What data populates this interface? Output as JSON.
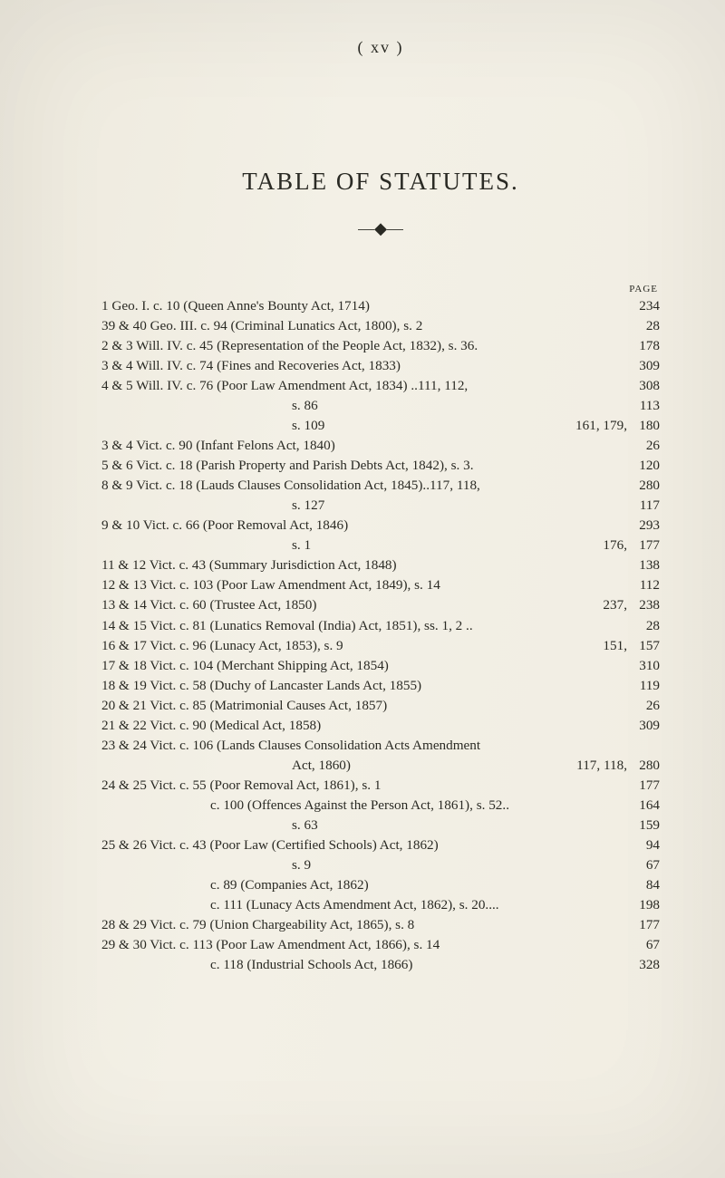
{
  "header_num": "(  xv  )",
  "title": "TABLE OF STATUTES.",
  "ornament": "—◆—",
  "page_label": "PAGE",
  "rows": [
    {
      "lead": "1 Geo. I. c. 10 (Queen Anne's Bounty Act, 1714)",
      "pg": "234",
      "cls": ""
    },
    {
      "lead": "39 & 40 Geo. III. c. 94 (Criminal Lunatics Act, 1800), s. 2",
      "pg": "28",
      "cls": ""
    },
    {
      "lead": "2 & 3 Will. IV. c. 45 (Representation of the People Act, 1832), s. 36.",
      "pg": "178",
      "cls": ""
    },
    {
      "lead": "3 & 4 Will. IV. c. 74 (Fines and Recoveries Act, 1833)",
      "pg": "309",
      "cls": ""
    },
    {
      "lead": "4 & 5 Will. IV. c. 76 (Poor Law Amendment Act, 1834) ..111, 112,",
      "pg": "308",
      "cls": "",
      "nodots": true
    },
    {
      "lead": "s. 86",
      "pg": "113",
      "cls": "cont"
    },
    {
      "lead": "s. 109",
      "mid": "161, 179,",
      "pg": "180",
      "cls": "cont"
    },
    {
      "lead": "3 & 4 Vict. c. 90 (Infant Felons Act, 1840)",
      "pg": "26",
      "cls": ""
    },
    {
      "lead": "5 & 6 Vict. c. 18 (Parish Property and Parish Debts Act, 1842), s. 3.",
      "pg": "120",
      "cls": ""
    },
    {
      "lead": "8 & 9 Vict. c. 18 (Lauds Clauses Consolidation Act, 1845)..117, 118,",
      "pg": "280",
      "cls": "",
      "nodots": true
    },
    {
      "lead": "s. 127",
      "pg": "117",
      "cls": "cont"
    },
    {
      "lead": "9 & 10 Vict. c. 66 (Poor Removal Act, 1846)",
      "pg": "293",
      "cls": ""
    },
    {
      "lead": "s. 1",
      "mid": "176,",
      "pg": "177",
      "cls": "cont"
    },
    {
      "lead": "11 & 12 Vict. c. 43 (Summary Jurisdiction Act, 1848)",
      "pg": "138",
      "cls": ""
    },
    {
      "lead": "12 & 13 Vict. c. 103 (Poor Law Amendment Act, 1849), s. 14",
      "pg": "112",
      "cls": ""
    },
    {
      "lead": "13 & 14 Vict. c. 60 (Trustee Act, 1850)",
      "mid": "237,",
      "pg": "238",
      "cls": ""
    },
    {
      "lead": "14 & 15 Vict. c. 81 (Lunatics Removal (India) Act, 1851), ss. 1, 2 ..",
      "pg": "28",
      "cls": "",
      "nodots": true
    },
    {
      "lead": "16 & 17 Vict. c. 96 (Lunacy Act, 1853), s. 9",
      "mid": "151,",
      "pg": "157",
      "cls": ""
    },
    {
      "lead": "17 & 18 Vict. c. 104 (Merchant Shipping Act, 1854)",
      "pg": "310",
      "cls": ""
    },
    {
      "lead": "18 & 19 Vict. c. 58 (Duchy of Lancaster Lands Act, 1855)",
      "pg": "119",
      "cls": ""
    },
    {
      "lead": "20 & 21 Vict. c. 85 (Matrimonial Causes Act, 1857)",
      "pg": "26",
      "cls": ""
    },
    {
      "lead": "21 & 22 Vict. c. 90 (Medical Act, 1858)",
      "pg": "309",
      "cls": ""
    },
    {
      "lead": "23 & 24 Vict. c. 106 (Lands Clauses Consolidation Acts Amendment",
      "pg": "",
      "cls": "",
      "nodots": true
    },
    {
      "lead": "Act, 1860)",
      "mid": "117, 118,",
      "pg": "280",
      "cls": "cont"
    },
    {
      "lead": "24 & 25 Vict. c. 55 (Poor Removal Act, 1861), s. 1",
      "pg": "177",
      "cls": ""
    },
    {
      "lead": "c. 100 (Offences Against the Person Act, 1861), s. 52..",
      "pg": "164",
      "cls": "cont3",
      "nodots": true
    },
    {
      "lead": "s. 63",
      "pg": "159",
      "cls": "cont"
    },
    {
      "lead": "25 & 26 Vict. c. 43 (Poor Law (Certified Schools) Act, 1862)",
      "pg": "94",
      "cls": ""
    },
    {
      "lead": "s. 9",
      "pg": "67",
      "cls": "cont"
    },
    {
      "lead": "c. 89 (Companies Act, 1862)",
      "pg": "84",
      "cls": "cont3"
    },
    {
      "lead": "c. 111 (Lunacy Acts Amendment Act, 1862), s. 20....",
      "pg": "198",
      "cls": "cont3",
      "nodots": true
    },
    {
      "lead": "28 & 29 Vict. c. 79 (Union Chargeability Act, 1865), s. 8",
      "pg": "177",
      "cls": ""
    },
    {
      "lead": "29 & 30 Vict. c. 113 (Poor Law Amendment Act, 1866), s. 14",
      "pg": "67",
      "cls": ""
    },
    {
      "lead": "c. 118 (Industrial Schools Act, 1866)",
      "pg": "328",
      "cls": "cont3"
    }
  ],
  "style": {
    "bg": "#f0ede3",
    "text": "#2a2a24",
    "title_fontsize": 27,
    "body_fontsize": 15.2,
    "page_label_fontsize": 11
  }
}
